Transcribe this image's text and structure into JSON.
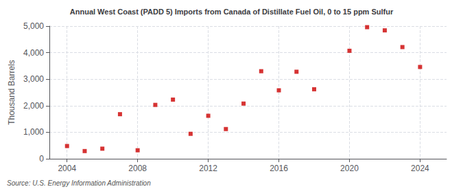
{
  "chart_data": {
    "type": "scatter",
    "title": "Annual West Coast (PADD 5) Imports from Canada of Distillate Fuel Oil, 0 to 15 ppm Sulfur",
    "ylabel": "Thousand Barrels",
    "annotations": [
      "Source: U.S. Energy Information Administration"
    ],
    "x": [
      2004,
      2005,
      2006,
      2007,
      2008,
      2009,
      2010,
      2011,
      2012,
      2013,
      2014,
      2015,
      2016,
      2017,
      2018,
      2020,
      2021,
      2022,
      2023,
      2024
    ],
    "values": [
      480,
      290,
      380,
      1680,
      320,
      2030,
      2230,
      940,
      1620,
      1120,
      2080,
      3300,
      2580,
      3280,
      2620,
      4070,
      4960,
      4840,
      4210,
      3460
    ],
    "color": "#cc0000",
    "marker": "square",
    "xlim": [
      2003,
      2025.5
    ],
    "xticks": [
      2004,
      2008,
      2012,
      2016,
      2020,
      2024
    ],
    "ylim": [
      0,
      5000
    ],
    "yticks": [
      0,
      {
        "value": 1000,
        "label": "1,000"
      },
      {
        "value": 2000,
        "label": "2,000"
      },
      {
        "value": 3000,
        "label": "3,000"
      },
      {
        "value": 4000,
        "label": "4,000"
      },
      {
        "value": 5000,
        "label": "5,000"
      }
    ],
    "grid": true
  }
}
